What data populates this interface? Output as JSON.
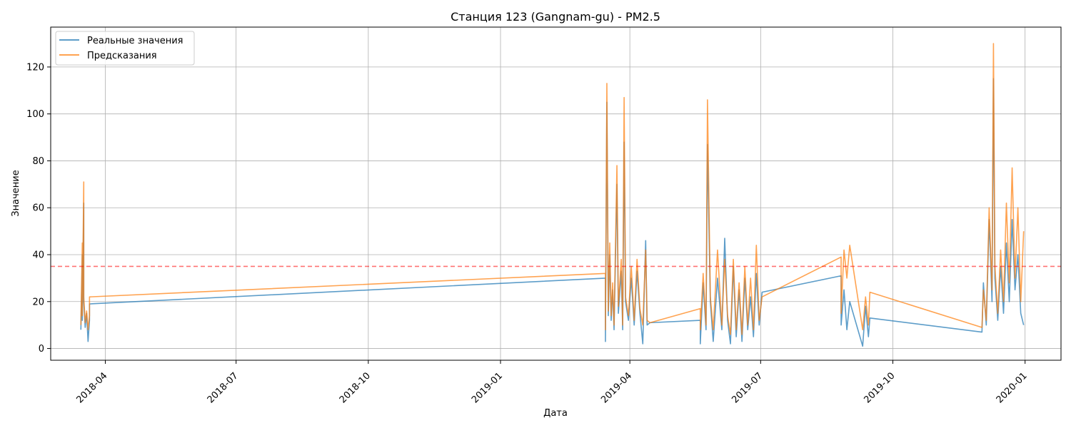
{
  "chart_data": {
    "type": "line",
    "title": "Станция 123 (Gangnam-gu) - PM2.5",
    "xlabel": "Дата",
    "ylabel": "Значение",
    "xlim": [
      "2018-02-22",
      "2020-01-26"
    ],
    "ylim": [
      -5,
      137
    ],
    "x_ticks": [
      "2018-04",
      "2018-07",
      "2018-10",
      "2019-01",
      "2019-04",
      "2019-07",
      "2019-10",
      "2020-01"
    ],
    "y_ticks": [
      0,
      20,
      40,
      60,
      80,
      100,
      120
    ],
    "grid": true,
    "legend": "upper-left",
    "threshold": {
      "value": 35,
      "color": "#ff0000",
      "style": "dashed"
    },
    "series": [
      {
        "name": "Реальные значения",
        "color": "#1f77b4",
        "points": [
          [
            "2018-03-15",
            8
          ],
          [
            "2018-03-16",
            40
          ],
          [
            "2018-03-16",
            12
          ],
          [
            "2018-03-17",
            62
          ],
          [
            "2018-03-17",
            20
          ],
          [
            "2018-03-18",
            9
          ],
          [
            "2018-03-19",
            15
          ],
          [
            "2018-03-20",
            3
          ],
          [
            "2018-03-21",
            12
          ],
          [
            "2018-03-21",
            19
          ],
          [
            "2019-03-15",
            30
          ],
          [
            "2019-03-15",
            3
          ],
          [
            "2019-03-16",
            105
          ],
          [
            "2019-03-17",
            14
          ],
          [
            "2019-03-18",
            40
          ],
          [
            "2019-03-19",
            12
          ],
          [
            "2019-03-20",
            25
          ],
          [
            "2019-03-21",
            8
          ],
          [
            "2019-03-23",
            70
          ],
          [
            "2019-03-24",
            15
          ],
          [
            "2019-03-26",
            33
          ],
          [
            "2019-03-27",
            8
          ],
          [
            "2019-03-28",
            88
          ],
          [
            "2019-03-29",
            20
          ],
          [
            "2019-03-31",
            12
          ],
          [
            "2019-04-02",
            30
          ],
          [
            "2019-04-04",
            10
          ],
          [
            "2019-04-06",
            33
          ],
          [
            "2019-04-08",
            15
          ],
          [
            "2019-04-10",
            2
          ],
          [
            "2019-04-12",
            46
          ],
          [
            "2019-04-13",
            10
          ],
          [
            "2019-04-15",
            11
          ],
          [
            "2019-05-20",
            12
          ],
          [
            "2019-05-20",
            2
          ],
          [
            "2019-05-22",
            28
          ],
          [
            "2019-05-24",
            8
          ],
          [
            "2019-05-25",
            87
          ],
          [
            "2019-05-27",
            20
          ],
          [
            "2019-05-29",
            3
          ],
          [
            "2019-06-01",
            30
          ],
          [
            "2019-06-04",
            8
          ],
          [
            "2019-06-06",
            47
          ],
          [
            "2019-06-08",
            12
          ],
          [
            "2019-06-10",
            2
          ],
          [
            "2019-06-12",
            35
          ],
          [
            "2019-06-14",
            5
          ],
          [
            "2019-06-16",
            25
          ],
          [
            "2019-06-18",
            3
          ],
          [
            "2019-06-20",
            30
          ],
          [
            "2019-06-22",
            8
          ],
          [
            "2019-06-24",
            22
          ],
          [
            "2019-06-26",
            5
          ],
          [
            "2019-06-28",
            32
          ],
          [
            "2019-06-30",
            10
          ],
          [
            "2019-07-02",
            24
          ],
          [
            "2019-08-26",
            31
          ],
          [
            "2019-08-26",
            10
          ],
          [
            "2019-08-28",
            25
          ],
          [
            "2019-08-30",
            8
          ],
          [
            "2019-09-01",
            20
          ],
          [
            "2019-09-10",
            1
          ],
          [
            "2019-09-12",
            18
          ],
          [
            "2019-09-14",
            5
          ],
          [
            "2019-09-15",
            13
          ],
          [
            "2019-12-02",
            7
          ],
          [
            "2019-12-03",
            28
          ],
          [
            "2019-12-05",
            10
          ],
          [
            "2019-12-07",
            55
          ],
          [
            "2019-12-09",
            20
          ],
          [
            "2019-12-10",
            115
          ],
          [
            "2019-12-11",
            30
          ],
          [
            "2019-12-13",
            12
          ],
          [
            "2019-12-15",
            35
          ],
          [
            "2019-12-17",
            15
          ],
          [
            "2019-12-19",
            45
          ],
          [
            "2019-12-21",
            20
          ],
          [
            "2019-12-23",
            55
          ],
          [
            "2019-12-25",
            25
          ],
          [
            "2019-12-27",
            40
          ],
          [
            "2019-12-29",
            15
          ],
          [
            "2019-12-31",
            10
          ]
        ]
      },
      {
        "name": "Предсказания",
        "color": "#ff7f0e",
        "points": [
          [
            "2018-03-15",
            10
          ],
          [
            "2018-03-16",
            45
          ],
          [
            "2018-03-16",
            14
          ],
          [
            "2018-03-17",
            71
          ],
          [
            "2018-03-17",
            22
          ],
          [
            "2018-03-18",
            11
          ],
          [
            "2018-03-19",
            16
          ],
          [
            "2018-03-20",
            8
          ],
          [
            "2018-03-21",
            14
          ],
          [
            "2018-03-21",
            22
          ],
          [
            "2019-03-15",
            32
          ],
          [
            "2019-03-15",
            8
          ],
          [
            "2019-03-16",
            113
          ],
          [
            "2019-03-17",
            16
          ],
          [
            "2019-03-18",
            45
          ],
          [
            "2019-03-19",
            14
          ],
          [
            "2019-03-20",
            28
          ],
          [
            "2019-03-21",
            10
          ],
          [
            "2019-03-23",
            78
          ],
          [
            "2019-03-24",
            18
          ],
          [
            "2019-03-26",
            38
          ],
          [
            "2019-03-27",
            10
          ],
          [
            "2019-03-28",
            107
          ],
          [
            "2019-03-29",
            22
          ],
          [
            "2019-03-31",
            14
          ],
          [
            "2019-04-02",
            35
          ],
          [
            "2019-04-04",
            12
          ],
          [
            "2019-04-06",
            38
          ],
          [
            "2019-04-08",
            17
          ],
          [
            "2019-04-10",
            10
          ],
          [
            "2019-04-12",
            42
          ],
          [
            "2019-04-13",
            12
          ],
          [
            "2019-04-15",
            11
          ],
          [
            "2019-05-20",
            17
          ],
          [
            "2019-05-20",
            8
          ],
          [
            "2019-05-22",
            32
          ],
          [
            "2019-05-24",
            10
          ],
          [
            "2019-05-25",
            106
          ],
          [
            "2019-05-27",
            22
          ],
          [
            "2019-05-29",
            8
          ],
          [
            "2019-06-01",
            42
          ],
          [
            "2019-06-04",
            10
          ],
          [
            "2019-06-06",
            38
          ],
          [
            "2019-06-08",
            14
          ],
          [
            "2019-06-10",
            6
          ],
          [
            "2019-06-12",
            38
          ],
          [
            "2019-06-14",
            8
          ],
          [
            "2019-06-16",
            28
          ],
          [
            "2019-06-18",
            6
          ],
          [
            "2019-06-20",
            35
          ],
          [
            "2019-06-22",
            10
          ],
          [
            "2019-06-24",
            30
          ],
          [
            "2019-06-26",
            8
          ],
          [
            "2019-06-28",
            44
          ],
          [
            "2019-06-30",
            12
          ],
          [
            "2019-07-02",
            22
          ],
          [
            "2019-08-26",
            39
          ],
          [
            "2019-08-26",
            15
          ],
          [
            "2019-08-28",
            42
          ],
          [
            "2019-08-30",
            30
          ],
          [
            "2019-09-01",
            44
          ],
          [
            "2019-09-10",
            8
          ],
          [
            "2019-09-12",
            22
          ],
          [
            "2019-09-14",
            10
          ],
          [
            "2019-09-15",
            24
          ],
          [
            "2019-12-02",
            9
          ],
          [
            "2019-12-03",
            25
          ],
          [
            "2019-12-05",
            12
          ],
          [
            "2019-12-07",
            60
          ],
          [
            "2019-12-09",
            25
          ],
          [
            "2019-12-10",
            130
          ],
          [
            "2019-12-11",
            35
          ],
          [
            "2019-12-13",
            15
          ],
          [
            "2019-12-15",
            42
          ],
          [
            "2019-12-17",
            20
          ],
          [
            "2019-12-19",
            62
          ],
          [
            "2019-12-21",
            28
          ],
          [
            "2019-12-23",
            77
          ],
          [
            "2019-12-25",
            30
          ],
          [
            "2019-12-27",
            60
          ],
          [
            "2019-12-29",
            20
          ],
          [
            "2019-12-31",
            50
          ]
        ]
      }
    ]
  }
}
